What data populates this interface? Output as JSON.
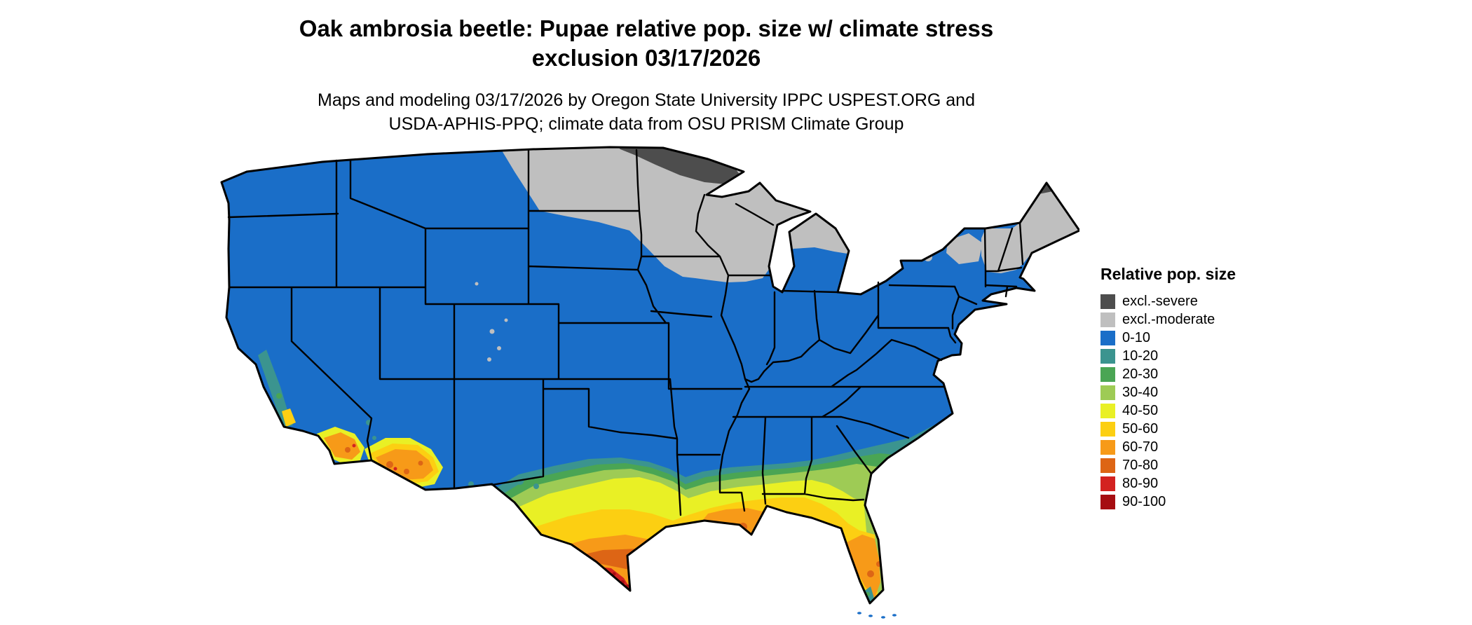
{
  "title": {
    "line1": "Oak ambrosia beetle: Pupae relative pop. size w/ climate stress",
    "line2": "exclusion 03/17/2026"
  },
  "subtitle": {
    "line1": "Maps and modeling 03/17/2026 by Oregon State University IPPC USPEST.ORG and",
    "line2": "USDA-APHIS-PPQ; climate data from OSU PRISM Climate Group"
  },
  "legend": {
    "title": "Relative pop. size",
    "items": [
      {
        "label": "excl.-severe",
        "color": "#4d4d4d"
      },
      {
        "label": "excl.-moderate",
        "color": "#bfbfbf"
      },
      {
        "label": "0-10",
        "color": "#1a6ec8"
      },
      {
        "label": "10-20",
        "color": "#3b948f"
      },
      {
        "label": "20-30",
        "color": "#4aa554"
      },
      {
        "label": "30-40",
        "color": "#9ecb55"
      },
      {
        "label": "40-50",
        "color": "#e9f025"
      },
      {
        "label": "50-60",
        "color": "#fccf12"
      },
      {
        "label": "60-70",
        "color": "#f79a18"
      },
      {
        "label": "70-80",
        "color": "#dd6515"
      },
      {
        "label": "80-90",
        "color": "#d32220"
      },
      {
        "label": "90-100",
        "color": "#a60d11"
      }
    ]
  },
  "colors": {
    "excl_severe": "#4d4d4d",
    "excl_moderate": "#bfbfbf",
    "b0_10": "#1a6ec8",
    "b10_20": "#3b948f",
    "b20_30": "#4aa554",
    "b30_40": "#9ecb55",
    "b40_50": "#e9f025",
    "b50_60": "#fccf12",
    "b60_70": "#f79a18",
    "b70_80": "#dd6515",
    "b80_90": "#d32220",
    "b90_100": "#a60d11",
    "outline": "#000000"
  },
  "map": {
    "description": "Continental United States choropleth of relative pupae population size with climate stress exclusion"
  }
}
